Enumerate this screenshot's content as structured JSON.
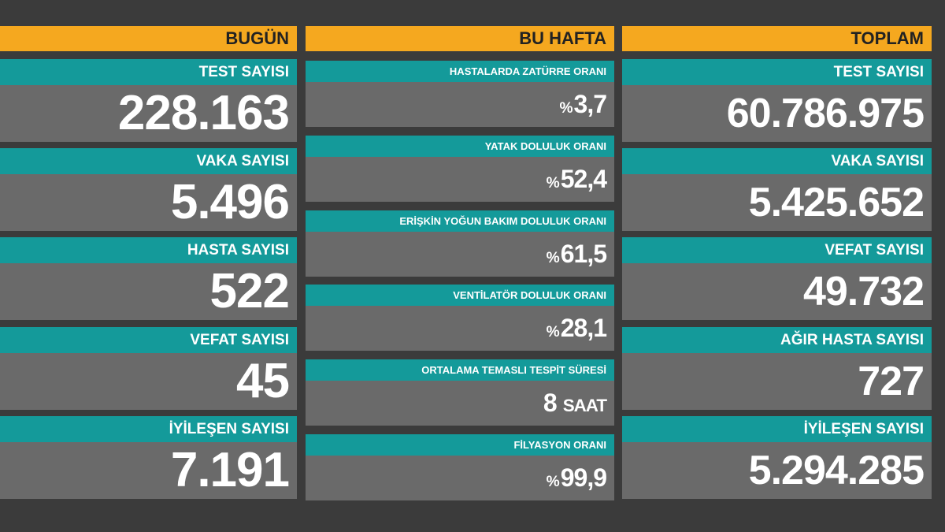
{
  "columns": [
    {
      "header": "BUGÜN",
      "items": [
        {
          "label": "TEST SAYISI",
          "value": "228.163"
        },
        {
          "label": "VAKA SAYISI",
          "value": "5.496"
        },
        {
          "label": "HASTA SAYISI",
          "value": "522"
        },
        {
          "label": "VEFAT SAYISI",
          "value": "45"
        },
        {
          "label": "İYİLEŞEN SAYISI",
          "value": "7.191"
        }
      ]
    },
    {
      "header": "BU HAFTA",
      "items": [
        {
          "label": "HASTALARDA ZATÜRRE ORANI",
          "prefix": "%",
          "value": "3,7"
        },
        {
          "label": "YATAK DOLULUK ORANI",
          "prefix": "%",
          "value": "52,4"
        },
        {
          "label": "ERİŞKİN YOĞUN BAKIM DOLULUK ORANI",
          "prefix": "%",
          "value": "61,5"
        },
        {
          "label": "VENTİLATÖR DOLULUK ORANI",
          "prefix": "%",
          "value": "28,1"
        },
        {
          "label": "ORTALAMA TEMASLI TESPİT SÜRESİ",
          "value": "8",
          "suffix": "SAAT"
        },
        {
          "label": "FİLYASYON ORANI",
          "prefix": "%",
          "value": "99,9"
        }
      ]
    },
    {
      "header": "TOPLAM",
      "items": [
        {
          "label": "TEST SAYISI",
          "value": "60.786.975"
        },
        {
          "label": "VAKA SAYISI",
          "value": "5.425.652"
        },
        {
          "label": "VEFAT SAYISI",
          "value": "49.732"
        },
        {
          "label": "AĞIR HASTA SAYISI",
          "value": "727"
        },
        {
          "label": "İYİLEŞEN SAYISI",
          "value": "5.294.285"
        }
      ]
    }
  ]
}
